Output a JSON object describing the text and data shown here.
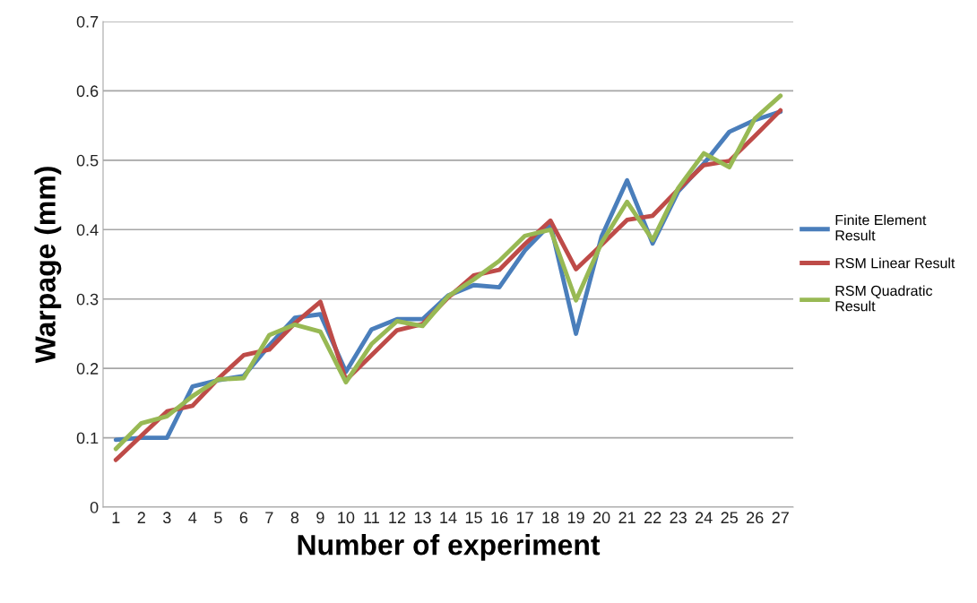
{
  "chart_data": {
    "type": "line",
    "xlabel": "Number of experiment",
    "ylabel": "Warpage (mm)",
    "categories": [
      "1",
      "2",
      "3",
      "4",
      "5",
      "6",
      "7",
      "8",
      "9",
      "10",
      "11",
      "12",
      "13",
      "14",
      "15",
      "16",
      "17",
      "18",
      "19",
      "20",
      "21",
      "22",
      "23",
      "24",
      "25",
      "26",
      "27"
    ],
    "series": [
      {
        "name": "Finite Element Result",
        "color": "#4a7ebb",
        "values": [
          0.097,
          0.1,
          0.1,
          0.174,
          0.183,
          0.189,
          0.233,
          0.273,
          0.278,
          0.195,
          0.256,
          0.271,
          0.271,
          0.305,
          0.32,
          0.317,
          0.37,
          0.408,
          0.25,
          0.39,
          0.471,
          0.38,
          0.455,
          0.495,
          0.541,
          0.558,
          0.57
        ]
      },
      {
        "name": "RSM Linear Result",
        "color": "#be4b48",
        "values": [
          0.068,
          0.103,
          0.138,
          0.146,
          0.185,
          0.219,
          0.227,
          0.265,
          0.296,
          0.183,
          0.219,
          0.255,
          0.264,
          0.302,
          0.334,
          0.342,
          0.379,
          0.413,
          0.343,
          0.378,
          0.414,
          0.42,
          0.458,
          0.493,
          0.499,
          0.535,
          0.572
        ]
      },
      {
        "name": "RSM Quadratic Result",
        "color": "#98b954",
        "values": [
          0.084,
          0.121,
          0.131,
          0.16,
          0.184,
          0.186,
          0.248,
          0.263,
          0.253,
          0.18,
          0.235,
          0.268,
          0.261,
          0.304,
          0.328,
          0.355,
          0.391,
          0.4,
          0.298,
          0.381,
          0.44,
          0.385,
          0.46,
          0.51,
          0.49,
          0.56,
          0.593
        ]
      }
    ],
    "ylim": [
      0,
      0.7
    ],
    "yticks": [
      {
        "value": 0,
        "label": "0"
      },
      0.1,
      0.2,
      0.3,
      0.4,
      0.5,
      0.6,
      0.7
    ],
    "grid": "y",
    "legend": "right",
    "marker": "none",
    "line_style": "solid"
  }
}
